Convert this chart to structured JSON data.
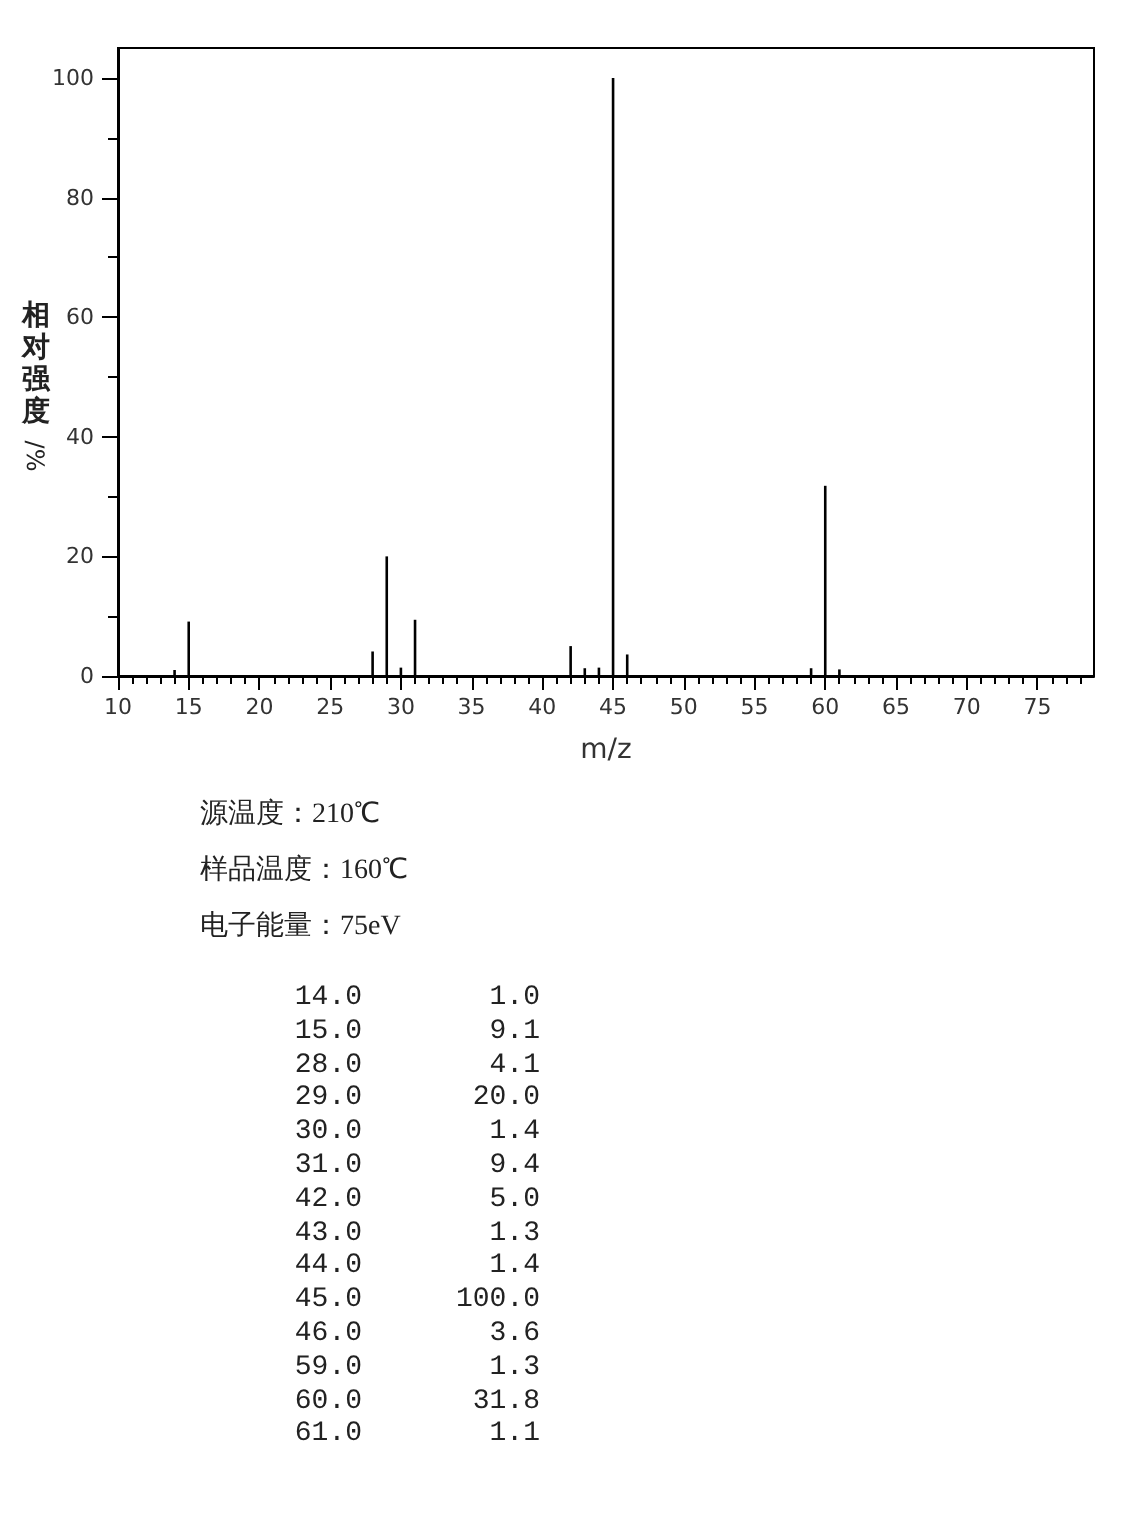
{
  "chart_data": [
    {
      "type": "bar",
      "xlabel": "m/z",
      "ylabel": "相对强度/%",
      "annotations": [
        "源温度：210℃",
        "样品温度：160℃",
        "电子能量：75eV"
      ],
      "x": [
        14,
        15,
        28,
        29,
        30,
        31,
        42,
        43,
        44,
        45,
        46,
        59,
        60,
        61
      ],
      "values": [
        1.0,
        9.1,
        4.1,
        20.0,
        1.4,
        9.4,
        5.0,
        1.3,
        1.4,
        100.0,
        3.6,
        1.3,
        31.8,
        1.1
      ],
      "color": "#000000",
      "xlim": [
        10,
        79
      ],
      "ylim": [
        0,
        105
      ],
      "xticks": [
        10,
        {
          "value": 11,
          "label": null
        },
        {
          "value": 12,
          "label": null
        },
        {
          "value": 13,
          "label": null
        },
        {
          "value": 14,
          "label": null
        },
        15,
        {
          "value": 16,
          "label": null
        },
        {
          "value": 17,
          "label": null
        },
        {
          "value": 18,
          "label": null
        },
        {
          "value": 19,
          "label": null
        },
        20,
        {
          "value": 21,
          "label": null
        },
        {
          "value": 22,
          "label": null
        },
        {
          "value": 23,
          "label": null
        },
        {
          "value": 24,
          "label": null
        },
        25,
        {
          "value": 26,
          "label": null
        },
        {
          "value": 27,
          "label": null
        },
        {
          "value": 28,
          "label": null
        },
        {
          "value": 29,
          "label": null
        },
        30,
        {
          "value": 31,
          "label": null
        },
        {
          "value": 32,
          "label": null
        },
        {
          "value": 33,
          "label": null
        },
        {
          "value": 34,
          "label": null
        },
        35,
        {
          "value": 36,
          "label": null
        },
        {
          "value": 37,
          "label": null
        },
        {
          "value": 38,
          "label": null
        },
        {
          "value": 39,
          "label": null
        },
        40,
        {
          "value": 41,
          "label": null
        },
        {
          "value": 42,
          "label": null
        },
        {
          "value": 43,
          "label": null
        },
        {
          "value": 44,
          "label": null
        },
        45,
        {
          "value": 46,
          "label": null
        },
        {
          "value": 47,
          "label": null
        },
        {
          "value": 48,
          "label": null
        },
        {
          "value": 49,
          "label": null
        },
        50,
        {
          "value": 51,
          "label": null
        },
        {
          "value": 52,
          "label": null
        },
        {
          "value": 53,
          "label": null
        },
        {
          "value": 54,
          "label": null
        },
        55,
        {
          "value": 56,
          "label": null
        },
        {
          "value": 57,
          "label": null
        },
        {
          "value": 58,
          "label": null
        },
        {
          "value": 59,
          "label": null
        },
        60,
        {
          "value": 61,
          "label": null
        },
        {
          "value": 62,
          "label": null
        },
        {
          "value": 63,
          "label": null
        },
        {
          "value": 64,
          "label": null
        },
        65,
        {
          "value": 66,
          "label": null
        },
        {
          "value": 67,
          "label": null
        },
        {
          "value": 68,
          "label": null
        },
        {
          "value": 69,
          "label": null
        },
        70,
        {
          "value": 71,
          "label": null
        },
        {
          "value": 72,
          "label": null
        },
        {
          "value": 73,
          "label": null
        },
        {
          "value": 74,
          "label": null
        },
        75,
        {
          "value": 76,
          "label": null
        },
        {
          "value": 77,
          "label": null
        },
        {
          "value": 78,
          "label": null
        }
      ],
      "yticks": [
        0,
        {
          "value": 10,
          "label": null
        },
        20,
        {
          "value": 30,
          "label": null
        },
        40,
        {
          "value": 50,
          "label": null
        },
        60,
        {
          "value": 70,
          "label": null
        },
        80,
        {
          "value": 90,
          "label": null
        },
        100
      ]
    },
    {
      "type": "other",
      "annotations": [
        "14.0",
        "1.0",
        "15.0",
        "9.1",
        "28.0",
        "4.1",
        "29.0",
        "20.0",
        "30.0",
        "1.4",
        "31.0",
        "9.4",
        "42.0",
        "5.0",
        "43.0",
        "1.3",
        "44.0",
        "1.4",
        "45.0",
        "100.0",
        "46.0",
        "3.6",
        "59.0",
        "1.3",
        "60.0",
        "31.8",
        "61.0",
        "1.1"
      ]
    }
  ]
}
